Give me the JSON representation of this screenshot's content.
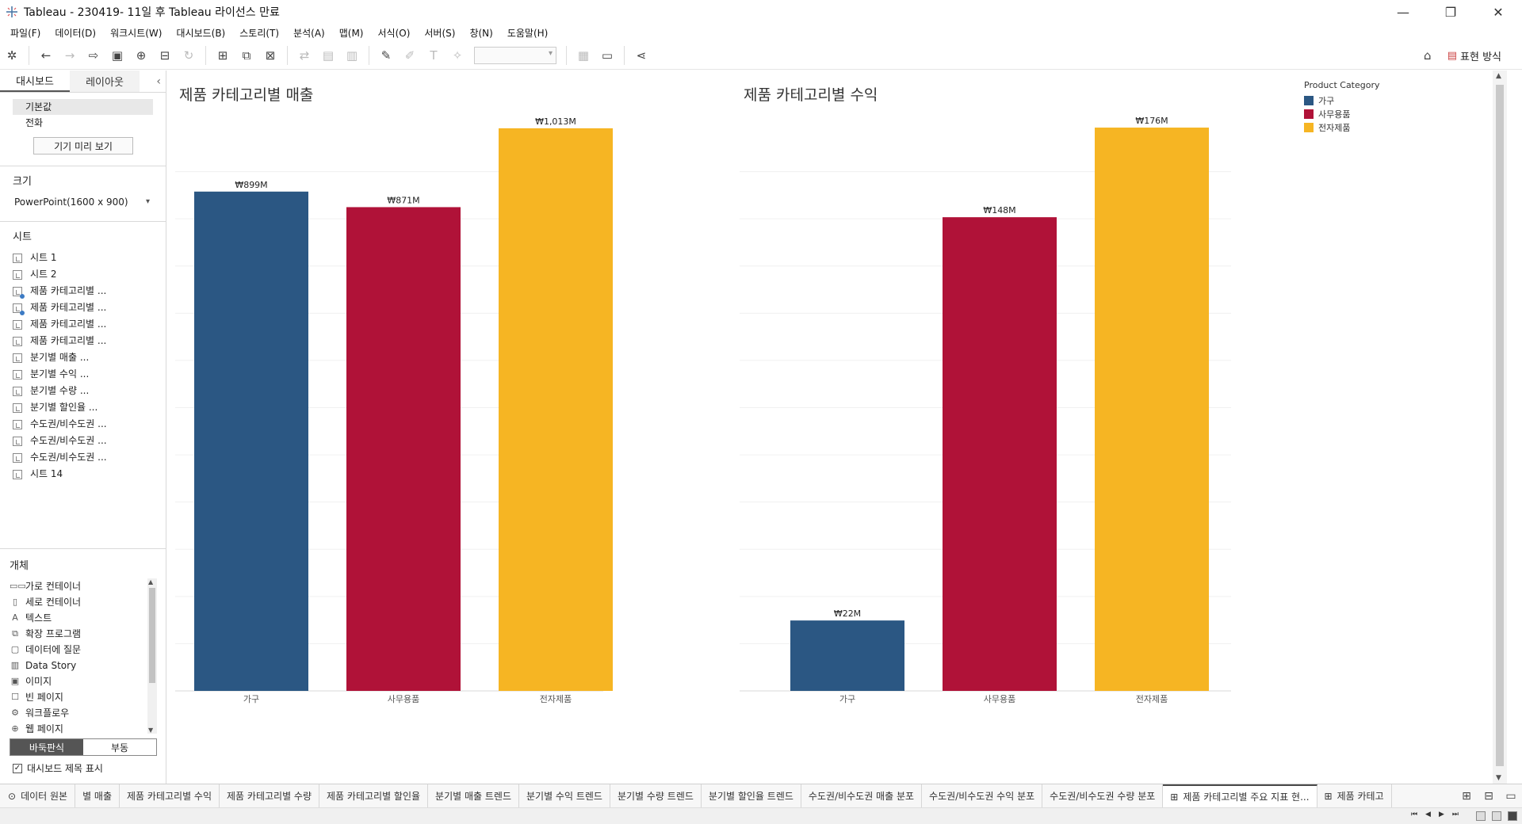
{
  "window": {
    "title": "Tableau - 230419- 11일 후 Tableau 라이선스 만료",
    "minimize": "—",
    "maximize": "❐",
    "close": "✕"
  },
  "menu": [
    "파일(F)",
    "데이터(D)",
    "워크시트(W)",
    "대시보드(B)",
    "스토리(T)",
    "분석(A)",
    "맵(M)",
    "서식(O)",
    "서버(S)",
    "창(N)",
    "도움말(H)"
  ],
  "toolbar": {
    "show_me_label": "표현 방식"
  },
  "left_panel": {
    "tab_dashboard": "대시보드",
    "tab_layout": "레이아웃",
    "collapse_icon": "‹",
    "devices": [
      "기본값",
      "전화"
    ],
    "preview_button": "기기 미리 보기",
    "size_heading": "크기",
    "size_value": "PowerPoint(1600 x 900)",
    "sheets_heading": "시트",
    "sheets": [
      {
        "label": "시트 1",
        "used": false
      },
      {
        "label": "시트 2",
        "used": false
      },
      {
        "label": "제품 카테고리별 ...",
        "used": true
      },
      {
        "label": "제품 카테고리별 ...",
        "used": true
      },
      {
        "label": "제품 카테고리별 ...",
        "used": false
      },
      {
        "label": "제품 카테고리별 ...",
        "used": false
      },
      {
        "label": "분기별 매출 ...",
        "used": false
      },
      {
        "label": "분기별 수익 ...",
        "used": false
      },
      {
        "label": "분기별 수량 ...",
        "used": false
      },
      {
        "label": "분기별 할인율 ...",
        "used": false
      },
      {
        "label": "수도권/비수도권 ...",
        "used": false
      },
      {
        "label": "수도권/비수도권 ...",
        "used": false
      },
      {
        "label": "수도권/비수도권 ...",
        "used": false
      },
      {
        "label": "시트 14",
        "used": false
      }
    ],
    "objects_heading": "개체",
    "objects": [
      {
        "icon": "▭▭",
        "label": "가로 컨테이너"
      },
      {
        "icon": "▯",
        "label": "세로 컨테이너"
      },
      {
        "icon": "A",
        "label": "텍스트"
      },
      {
        "icon": "⧉",
        "label": "확장 프로그램"
      },
      {
        "icon": "▢",
        "label": "데이터에 질문"
      },
      {
        "icon": "▥",
        "label": "Data Story"
      },
      {
        "icon": "▣",
        "label": "이미지"
      },
      {
        "icon": "☐",
        "label": "빈 페이지"
      },
      {
        "icon": "⚙",
        "label": "워크플로우"
      },
      {
        "icon": "⊕",
        "label": "웹 페이지"
      }
    ],
    "tiled_label": "바둑판식",
    "floating_label": "부동",
    "show_title_label": "대시보드 제목 표시",
    "show_title_checked": "✓"
  },
  "chart_data": [
    {
      "type": "bar",
      "title": "제품 카테고리별 매출",
      "categories": [
        "가구",
        "사무용품",
        "전자제품"
      ],
      "values": [
        899,
        871,
        1013
      ],
      "value_labels": [
        "₩899M",
        "₩871M",
        "₩1,013M"
      ],
      "ylim": [
        0,
        1020
      ],
      "grid": true,
      "colors": [
        "#2b5783",
        "#b01238",
        "#f6b523"
      ]
    },
    {
      "type": "bar",
      "title": "제품 카테고리별 수익",
      "categories": [
        "가구",
        "사무용품",
        "전자제품"
      ],
      "values": [
        22,
        148,
        176
      ],
      "value_labels": [
        "₩22M",
        "₩148M",
        "₩176M"
      ],
      "ylim": [
        0,
        177
      ],
      "grid": true,
      "colors": [
        "#2b5783",
        "#b01238",
        "#f6b523"
      ]
    }
  ],
  "legend": {
    "title": "Product Category",
    "items": [
      {
        "label": "가구",
        "color": "#2b5783"
      },
      {
        "label": "사무용품",
        "color": "#b01238"
      },
      {
        "label": "전자제품",
        "color": "#f6b523"
      }
    ]
  },
  "bottom_tabs": [
    {
      "label": "데이터 원본",
      "icon": "⊙",
      "active": false
    },
    {
      "label": "별 매출",
      "icon": "",
      "active": false
    },
    {
      "label": "제품 카테고리별 수익",
      "icon": "",
      "active": false
    },
    {
      "label": "제품 카테고리별 수량",
      "icon": "",
      "active": false
    },
    {
      "label": "제품 카테고리별 할인율",
      "icon": "",
      "active": false
    },
    {
      "label": "분기별 매출 트렌드",
      "icon": "",
      "active": false
    },
    {
      "label": "분기별 수익 트렌드",
      "icon": "",
      "active": false
    },
    {
      "label": "분기별 수량 트렌드",
      "icon": "",
      "active": false
    },
    {
      "label": "분기별 할인율 트렌드",
      "icon": "",
      "active": false
    },
    {
      "label": "수도권/비수도권 매출 분포",
      "icon": "",
      "active": false
    },
    {
      "label": "수도권/비수도권 수익 분포",
      "icon": "",
      "active": false
    },
    {
      "label": "수도권/비수도권 수량 분포",
      "icon": "",
      "active": false
    },
    {
      "label": "제품 카테고리별 주요 지표 현...",
      "icon": "⊞",
      "active": true
    },
    {
      "label": "제품 카테고",
      "icon": "⊞",
      "active": false
    }
  ]
}
